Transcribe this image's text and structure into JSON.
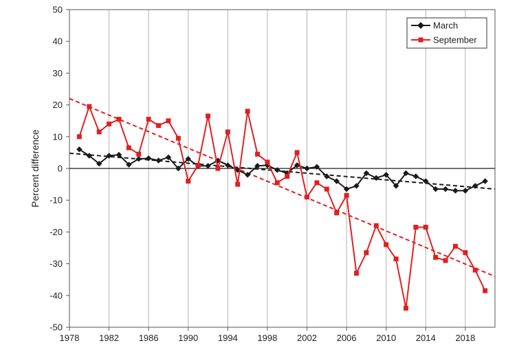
{
  "chart_data": {
    "type": "line",
    "xlabel": "",
    "ylabel": "Percent difference",
    "xlim": [
      1978,
      2021
    ],
    "ylim": [
      -50,
      50
    ],
    "x_ticks": [
      1978,
      1982,
      1986,
      1990,
      1994,
      1998,
      2002,
      2006,
      2010,
      2014,
      2018
    ],
    "y_ticks": [
      -50,
      -40,
      -30,
      -20,
      -10,
      0,
      10,
      20,
      30,
      40,
      50
    ],
    "grid": "vertical",
    "legend_position": "top-right",
    "zero_line": true,
    "x": [
      1979,
      1980,
      1981,
      1982,
      1983,
      1984,
      1985,
      1986,
      1987,
      1988,
      1989,
      1990,
      1991,
      1992,
      1993,
      1994,
      1995,
      1996,
      1997,
      1998,
      1999,
      2000,
      2001,
      2002,
      2003,
      2004,
      2005,
      2006,
      2007,
      2008,
      2009,
      2010,
      2011,
      2012,
      2013,
      2014,
      2015,
      2016,
      2017,
      2018,
      2019,
      2020
    ],
    "series": [
      {
        "name": "March",
        "color": "#1a1a1a",
        "marker": "diamond",
        "values": [
          6,
          4,
          1.5,
          4,
          4.3,
          1.2,
          3,
          3.2,
          2.5,
          3.5,
          0,
          3,
          0.8,
          0.8,
          2.5,
          1,
          -0.5,
          -2,
          0.8,
          1,
          -0.5,
          -1.5,
          1,
          0,
          0.5,
          -2.5,
          -4,
          -6.5,
          -5.5,
          -1.5,
          -3,
          -2,
          -5.5,
          -1.5,
          -2.5,
          -4,
          -6.5,
          -6.5,
          -7,
          -7,
          -5.5,
          -4
        ]
      },
      {
        "name": "September",
        "color": "#e02020",
        "marker": "square",
        "values": [
          10,
          19.5,
          11.5,
          14,
          15.5,
          6.5,
          4.5,
          15.5,
          13.5,
          15,
          9.5,
          -4,
          1,
          16.5,
          0,
          11.5,
          -5,
          18,
          4.5,
          2,
          -4.5,
          -2.5,
          5,
          -9,
          -4.5,
          -6.5,
          -14,
          -8.5,
          -33,
          -26.5,
          -18,
          -24,
          -28.5,
          -44,
          -18.5,
          -18.5,
          -28,
          -29,
          -24.5,
          -26.5,
          -32,
          -38.5
        ]
      }
    ],
    "trendlines": [
      {
        "series": "March",
        "color": "#1a1a1a",
        "x": [
          1978,
          2021
        ],
        "y": [
          4.8,
          -6.5
        ]
      },
      {
        "series": "September",
        "color": "#e02020",
        "x": [
          1978,
          2021
        ],
        "y": [
          22,
          -34
        ]
      }
    ]
  }
}
